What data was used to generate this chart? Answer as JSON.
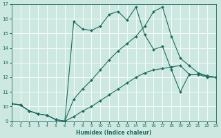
{
  "xlabel": "Humidex (Indice chaleur)",
  "xlim": [
    0,
    23
  ],
  "ylim": [
    9,
    17
  ],
  "yticks": [
    9,
    10,
    11,
    12,
    13,
    14,
    15,
    16,
    17
  ],
  "xticks": [
    0,
    1,
    2,
    3,
    4,
    5,
    6,
    7,
    8,
    9,
    10,
    11,
    12,
    13,
    14,
    15,
    16,
    17,
    18,
    19,
    20,
    21,
    22,
    23
  ],
  "bg_color": "#cde8e0",
  "line_color": "#1a6b5e",
  "grid_color": "#b0d8d0",
  "line1_y": [
    10.2,
    10.1,
    9.7,
    9.5,
    9.4,
    9.1,
    9.0,
    9.3,
    9.7,
    10.0,
    10.4,
    10.8,
    11.2,
    11.6,
    12.0,
    12.3,
    12.5,
    12.6,
    12.7,
    12.8,
    12.2,
    12.2,
    12.1,
    12.0
  ],
  "line2_y": [
    10.2,
    10.1,
    9.7,
    9.5,
    9.4,
    9.1,
    9.0,
    15.8,
    15.3,
    15.2,
    15.5,
    16.3,
    16.5,
    15.9,
    16.8,
    14.9,
    13.9,
    14.1,
    12.5,
    11.0,
    12.2,
    12.2,
    12.0,
    12.0
  ],
  "line3_y": [
    10.2,
    10.1,
    9.7,
    9.5,
    9.4,
    9.1,
    9.0,
    10.5,
    11.2,
    11.8,
    12.5,
    13.2,
    13.8,
    14.3,
    14.8,
    15.5,
    16.5,
    16.8,
    14.8,
    13.3,
    12.8,
    12.3,
    12.1,
    12.0
  ]
}
